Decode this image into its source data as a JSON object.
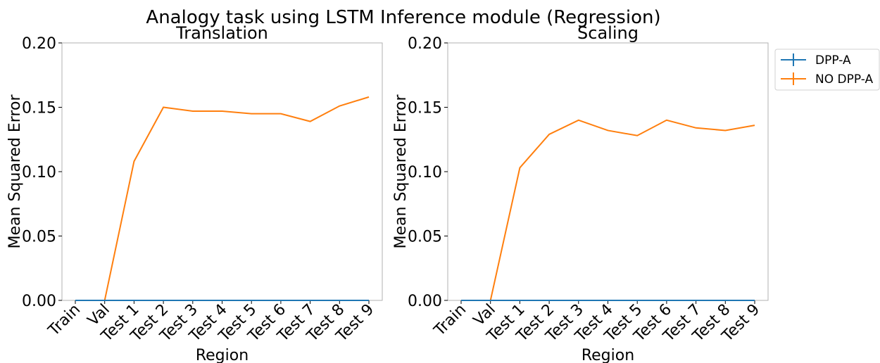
{
  "title": "Analogy task using LSTM Inference module (Regression)",
  "chart_data": [
    {
      "type": "line",
      "title": "Translation",
      "xlabel": "Region",
      "ylabel": "Mean Squared Error",
      "categories": [
        "Train",
        "Val",
        "Test 1",
        "Test 2",
        "Test 3",
        "Test 4",
        "Test 5",
        "Test 6",
        "Test 7",
        "Test 8",
        "Test 9"
      ],
      "series": [
        {
          "name": "DPP-A",
          "color": "#1f77b4",
          "values": [
            0,
            0,
            0,
            0,
            0,
            0,
            0,
            0,
            0,
            0,
            0
          ]
        },
        {
          "name": "NO DPP-A",
          "color": "#ff7f0e",
          "values": [
            0,
            0,
            0.108,
            0.15,
            0.147,
            0.147,
            0.145,
            0.145,
            0.139,
            0.151,
            0.158
          ]
        }
      ],
      "ylim": [
        0,
        0.2
      ],
      "yticks": [
        {
          "value": 0,
          "label": "0.00"
        },
        {
          "value": 0.05,
          "label": "0.05"
        },
        {
          "value": 0.1,
          "label": "0.10"
        },
        {
          "value": 0.15,
          "label": "0.15"
        },
        {
          "value": 0.2,
          "label": "0.20"
        }
      ]
    },
    {
      "type": "line",
      "title": "Scaling",
      "xlabel": "Region",
      "ylabel": "Mean Squared Error",
      "categories": [
        "Train",
        "Val",
        "Test 1",
        "Test 2",
        "Test 3",
        "Test 4",
        "Test 5",
        "Test 6",
        "Test 7",
        "Test 8",
        "Test 9"
      ],
      "series": [
        {
          "name": "DPP-A",
          "color": "#1f77b4",
          "values": [
            0,
            0,
            0,
            0,
            0,
            0,
            0,
            0,
            0,
            0,
            0
          ]
        },
        {
          "name": "NO DPP-A",
          "color": "#ff7f0e",
          "values": [
            0,
            0,
            0.103,
            0.129,
            0.14,
            0.132,
            0.128,
            0.14,
            0.134,
            0.132,
            0.136
          ]
        }
      ],
      "ylim": [
        0,
        0.2
      ],
      "yticks": [
        {
          "value": 0,
          "label": "0.00"
        },
        {
          "value": 0.05,
          "label": "0.05"
        },
        {
          "value": 0.1,
          "label": "0.10"
        },
        {
          "value": 0.15,
          "label": "0.15"
        },
        {
          "value": 0.2,
          "label": "0.20"
        }
      ],
      "legend": "outside upper right"
    }
  ]
}
